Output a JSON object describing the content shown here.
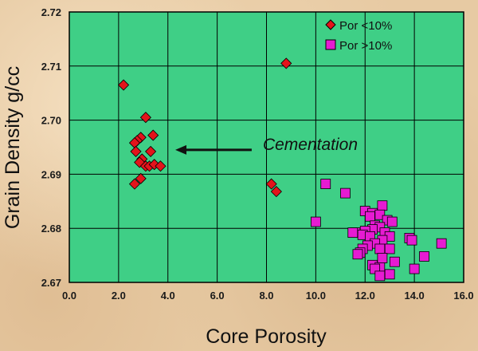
{
  "chart_data": {
    "type": "scatter",
    "title": "",
    "xlabel": "Core Porosity",
    "ylabel": "Grain Density g/cc",
    "xlim": [
      0,
      16
    ],
    "ylim": [
      2.67,
      2.72
    ],
    "x_ticks": [
      "0.0",
      "2.0",
      "4.0",
      "6.0",
      "8.0",
      "10.0",
      "12.0",
      "14.0",
      "16.0"
    ],
    "y_ticks": [
      "2.67",
      "2.68",
      "2.69",
      "2.70",
      "2.71",
      "2.72"
    ],
    "grid": true,
    "legend_position": "top-right",
    "plot_background": "#3fcf86",
    "series": [
      {
        "name": "Por <10%",
        "marker": "diamond",
        "color": "#e3141b",
        "points": [
          [
            2.2,
            2.7065
          ],
          [
            3.1,
            2.7005
          ],
          [
            3.4,
            2.6972
          ],
          [
            2.9,
            2.6968
          ],
          [
            2.75,
            2.6962
          ],
          [
            2.65,
            2.6958
          ],
          [
            3.3,
            2.6942
          ],
          [
            2.7,
            2.6942
          ],
          [
            2.95,
            2.6928
          ],
          [
            2.85,
            2.6922
          ],
          [
            3.1,
            2.6915
          ],
          [
            3.25,
            2.6915
          ],
          [
            3.45,
            2.6918
          ],
          [
            3.7,
            2.6915
          ],
          [
            2.9,
            2.6892
          ],
          [
            2.65,
            2.6882
          ],
          [
            8.2,
            2.6882
          ],
          [
            8.4,
            2.6868
          ],
          [
            8.8,
            2.7105
          ]
        ]
      },
      {
        "name": "Por >10%",
        "marker": "square",
        "color": "#e61bd2",
        "points": [
          [
            10.4,
            2.6882
          ],
          [
            11.2,
            2.6865
          ],
          [
            10.0,
            2.6812
          ],
          [
            12.7,
            2.6842
          ],
          [
            12.0,
            2.6832
          ],
          [
            12.3,
            2.6828
          ],
          [
            12.2,
            2.6822
          ],
          [
            12.6,
            2.6825
          ],
          [
            12.9,
            2.6815
          ],
          [
            13.1,
            2.6812
          ],
          [
            12.4,
            2.6805
          ],
          [
            12.6,
            2.6802
          ],
          [
            12.3,
            2.6798
          ],
          [
            12.0,
            2.6795
          ],
          [
            11.6,
            2.6792
          ],
          [
            11.9,
            2.6788
          ],
          [
            12.8,
            2.6792
          ],
          [
            13.0,
            2.6785
          ],
          [
            12.2,
            2.6785
          ],
          [
            11.5,
            2.6792
          ],
          [
            12.7,
            2.6778
          ],
          [
            12.4,
            2.6772
          ],
          [
            12.1,
            2.6768
          ],
          [
            13.0,
            2.6762
          ],
          [
            12.6,
            2.6762
          ],
          [
            11.9,
            2.6762
          ],
          [
            11.8,
            2.6755
          ],
          [
            13.8,
            2.6782
          ],
          [
            13.9,
            2.6778
          ],
          [
            15.1,
            2.6772
          ],
          [
            14.4,
            2.6748
          ],
          [
            13.2,
            2.6738
          ],
          [
            12.3,
            2.6732
          ],
          [
            12.6,
            2.6728
          ],
          [
            12.4,
            2.6725
          ],
          [
            13.0,
            2.6715
          ],
          [
            12.6,
            2.6712
          ],
          [
            14.0,
            2.6725
          ],
          [
            11.7,
            2.6752
          ],
          [
            12.7,
            2.6745
          ]
        ]
      }
    ],
    "annotations": [
      {
        "text": "Cementation",
        "arrow_from": [
          7.4,
          2.6945
        ],
        "arrow_to": [
          4.3,
          2.6945
        ]
      }
    ]
  }
}
